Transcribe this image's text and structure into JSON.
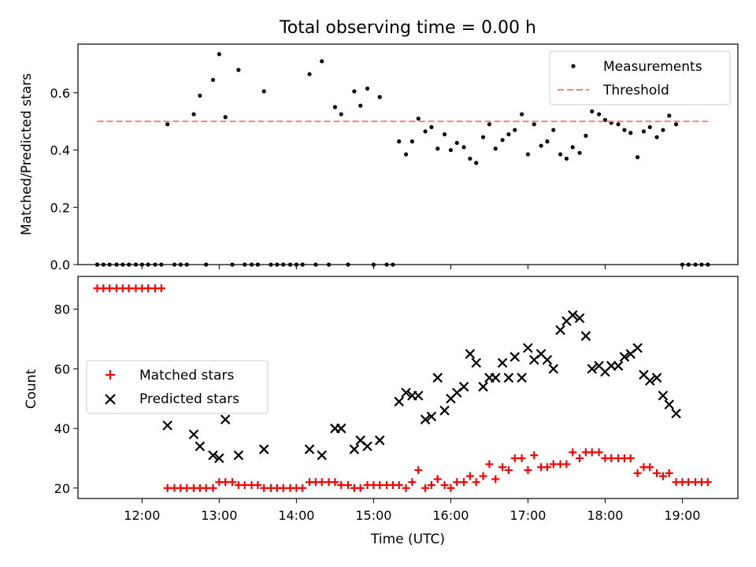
{
  "chart_data": [
    {
      "type": "scatter",
      "title": "Total observing time = 0.00 h",
      "ylabel": "Matched/Predicted stars",
      "xlabel": "",
      "xlim": [
        11.17,
        19.72
      ],
      "ylim": [
        0.0,
        0.77
      ],
      "yticks": [
        0.0,
        0.2,
        0.4,
        0.6
      ],
      "ytick_labels": [
        "0.0",
        "0.2",
        "0.4",
        "0.6"
      ],
      "legend_position": "top-right",
      "legend": [
        "Measurements",
        "Threshold"
      ],
      "series": [
        {
          "name": "Measurements",
          "marker": "dot",
          "color": "#000000",
          "points": [
            [
              11.42,
              0
            ],
            [
              11.5,
              0
            ],
            [
              11.58,
              0
            ],
            [
              11.67,
              0
            ],
            [
              11.75,
              0
            ],
            [
              11.83,
              0
            ],
            [
              11.92,
              0
            ],
            [
              12.0,
              0
            ],
            [
              12.08,
              0
            ],
            [
              12.17,
              0
            ],
            [
              12.25,
              0
            ],
            [
              12.33,
              0.49
            ],
            [
              12.42,
              0
            ],
            [
              12.5,
              0
            ],
            [
              12.58,
              0
            ],
            [
              12.67,
              0.525
            ],
            [
              12.75,
              0.59
            ],
            [
              12.83,
              0
            ],
            [
              12.92,
              0.645
            ],
            [
              13.0,
              0.735
            ],
            [
              13.08,
              0.515
            ],
            [
              13.17,
              0
            ],
            [
              13.25,
              0.68
            ],
            [
              13.33,
              0
            ],
            [
              13.42,
              0
            ],
            [
              13.5,
              0
            ],
            [
              13.58,
              0.605
            ],
            [
              13.67,
              0
            ],
            [
              13.75,
              0
            ],
            [
              13.83,
              0
            ],
            [
              13.92,
              0
            ],
            [
              14.0,
              0
            ],
            [
              14.08,
              0
            ],
            [
              14.17,
              0.665
            ],
            [
              14.25,
              0
            ],
            [
              14.33,
              0.71
            ],
            [
              14.42,
              0
            ],
            [
              14.5,
              0.55
            ],
            [
              14.58,
              0.525
            ],
            [
              14.67,
              0
            ],
            [
              14.75,
              0.605
            ],
            [
              14.83,
              0.555
            ],
            [
              14.92,
              0.615
            ],
            [
              15.0,
              0
            ],
            [
              15.08,
              0.585
            ],
            [
              15.17,
              0
            ],
            [
              15.25,
              0
            ],
            [
              15.33,
              0.43
            ],
            [
              15.42,
              0.385
            ],
            [
              15.5,
              0.43
            ],
            [
              15.58,
              0.51
            ],
            [
              15.67,
              0.465
            ],
            [
              15.75,
              0.48
            ],
            [
              15.83,
              0.405
            ],
            [
              15.92,
              0.455
            ],
            [
              16.0,
              0.4
            ],
            [
              16.08,
              0.425
            ],
            [
              16.17,
              0.41
            ],
            [
              16.25,
              0.37
            ],
            [
              16.33,
              0.355
            ],
            [
              16.42,
              0.445
            ],
            [
              16.5,
              0.49
            ],
            [
              16.58,
              0.405
            ],
            [
              16.67,
              0.435
            ],
            [
              16.75,
              0.455
            ],
            [
              16.83,
              0.47
            ],
            [
              16.92,
              0.525
            ],
            [
              17.0,
              0.385
            ],
            [
              17.08,
              0.49
            ],
            [
              17.17,
              0.415
            ],
            [
              17.25,
              0.43
            ],
            [
              17.33,
              0.47
            ],
            [
              17.42,
              0.385
            ],
            [
              17.5,
              0.37
            ],
            [
              17.58,
              0.41
            ],
            [
              17.67,
              0.39
            ],
            [
              17.75,
              0.45
            ],
            [
              17.83,
              0.535
            ],
            [
              17.92,
              0.525
            ],
            [
              18.0,
              0.505
            ],
            [
              18.08,
              0.495
            ],
            [
              18.17,
              0.49
            ],
            [
              18.25,
              0.47
            ],
            [
              18.33,
              0.46
            ],
            [
              18.42,
              0.375
            ],
            [
              18.5,
              0.465
            ],
            [
              18.58,
              0.48
            ],
            [
              18.67,
              0.445
            ],
            [
              18.75,
              0.47
            ],
            [
              18.83,
              0.52
            ],
            [
              18.92,
              0.49
            ],
            [
              19.0,
              0
            ],
            [
              19.08,
              0
            ],
            [
              19.17,
              0
            ],
            [
              19.25,
              0
            ],
            [
              19.33,
              0
            ]
          ]
        },
        {
          "name": "Threshold",
          "style": "dashed",
          "color": "#ff7f7f",
          "points": [
            [
              11.42,
              0.5
            ],
            [
              19.33,
              0.5
            ]
          ]
        }
      ]
    },
    {
      "type": "scatter",
      "title": "",
      "xlabel": "Time (UTC)",
      "ylabel": "Count",
      "xlim": [
        11.17,
        19.72
      ],
      "ylim": [
        16.5,
        91.0
      ],
      "xticks": [
        12,
        13,
        14,
        15,
        16,
        17,
        18,
        19
      ],
      "xtick_labels": [
        "12:00",
        "13:00",
        "14:00",
        "15:00",
        "16:00",
        "17:00",
        "18:00",
        "19:00"
      ],
      "yticks": [
        20,
        40,
        60,
        80
      ],
      "ytick_labels": [
        "20",
        "40",
        "60",
        "80"
      ],
      "legend_position": "center-left",
      "legend": [
        "Matched stars",
        "Predicted stars"
      ],
      "series": [
        {
          "name": "Matched stars",
          "marker": "plus",
          "color": "#ff0000",
          "points": [
            [
              11.42,
              87
            ],
            [
              11.5,
              87
            ],
            [
              11.58,
              87
            ],
            [
              11.67,
              87
            ],
            [
              11.75,
              87
            ],
            [
              11.83,
              87
            ],
            [
              11.92,
              87
            ],
            [
              12.0,
              87
            ],
            [
              12.08,
              87
            ],
            [
              12.17,
              87
            ],
            [
              12.25,
              87
            ],
            [
              12.33,
              20
            ],
            [
              12.42,
              20
            ],
            [
              12.5,
              20
            ],
            [
              12.58,
              20
            ],
            [
              12.67,
              20
            ],
            [
              12.75,
              20
            ],
            [
              12.83,
              20
            ],
            [
              12.92,
              20
            ],
            [
              13.0,
              22
            ],
            [
              13.08,
              22
            ],
            [
              13.17,
              22
            ],
            [
              13.25,
              21
            ],
            [
              13.33,
              21
            ],
            [
              13.42,
              21
            ],
            [
              13.5,
              21
            ],
            [
              13.58,
              20
            ],
            [
              13.67,
              20
            ],
            [
              13.75,
              20
            ],
            [
              13.83,
              20
            ],
            [
              13.92,
              20
            ],
            [
              14.0,
              20
            ],
            [
              14.08,
              20
            ],
            [
              14.17,
              22
            ],
            [
              14.25,
              22
            ],
            [
              14.33,
              22
            ],
            [
              14.42,
              22
            ],
            [
              14.5,
              22
            ],
            [
              14.58,
              21
            ],
            [
              14.67,
              21
            ],
            [
              14.75,
              20
            ],
            [
              14.83,
              20
            ],
            [
              14.92,
              21
            ],
            [
              15.0,
              21
            ],
            [
              15.08,
              21
            ],
            [
              15.17,
              21
            ],
            [
              15.25,
              21
            ],
            [
              15.33,
              21
            ],
            [
              15.42,
              20
            ],
            [
              15.5,
              22
            ],
            [
              15.58,
              26
            ],
            [
              15.67,
              20
            ],
            [
              15.75,
              21
            ],
            [
              15.83,
              23
            ],
            [
              15.92,
              21
            ],
            [
              16.0,
              20
            ],
            [
              16.08,
              22
            ],
            [
              16.17,
              22
            ],
            [
              16.25,
              24
            ],
            [
              16.33,
              22
            ],
            [
              16.42,
              24
            ],
            [
              16.5,
              28
            ],
            [
              16.58,
              23
            ],
            [
              16.67,
              27
            ],
            [
              16.75,
              26
            ],
            [
              16.83,
              30
            ],
            [
              16.92,
              30
            ],
            [
              17.0,
              26
            ],
            [
              17.08,
              31
            ],
            [
              17.17,
              27
            ],
            [
              17.25,
              27
            ],
            [
              17.33,
              28
            ],
            [
              17.42,
              28
            ],
            [
              17.5,
              28
            ],
            [
              17.58,
              32
            ],
            [
              17.67,
              30
            ],
            [
              17.75,
              32
            ],
            [
              17.83,
              32
            ],
            [
              17.92,
              32
            ],
            [
              18.0,
              30
            ],
            [
              18.08,
              30
            ],
            [
              18.17,
              30
            ],
            [
              18.25,
              30
            ],
            [
              18.33,
              30
            ],
            [
              18.42,
              25
            ],
            [
              18.5,
              27
            ],
            [
              18.58,
              27
            ],
            [
              18.67,
              25
            ],
            [
              18.75,
              24
            ],
            [
              18.83,
              25
            ],
            [
              18.92,
              22
            ],
            [
              19.0,
              22
            ],
            [
              19.08,
              22
            ],
            [
              19.17,
              22
            ],
            [
              19.25,
              22
            ],
            [
              19.33,
              22
            ]
          ]
        },
        {
          "name": "Predicted stars",
          "marker": "x",
          "color": "#000000",
          "points": [
            [
              12.33,
              41
            ],
            [
              12.67,
              38
            ],
            [
              12.75,
              34
            ],
            [
              12.92,
              31
            ],
            [
              13.0,
              30
            ],
            [
              13.08,
              43
            ],
            [
              13.25,
              31
            ],
            [
              13.58,
              33
            ],
            [
              14.17,
              33
            ],
            [
              14.33,
              31
            ],
            [
              14.5,
              40
            ],
            [
              14.58,
              40
            ],
            [
              14.75,
              33
            ],
            [
              14.83,
              36
            ],
            [
              14.92,
              34
            ],
            [
              15.08,
              36
            ],
            [
              15.33,
              49
            ],
            [
              15.42,
              52
            ],
            [
              15.5,
              51
            ],
            [
              15.58,
              51
            ],
            [
              15.67,
              43
            ],
            [
              15.75,
              44
            ],
            [
              15.83,
              57
            ],
            [
              15.92,
              46
            ],
            [
              16.0,
              50
            ],
            [
              16.08,
              52
            ],
            [
              16.17,
              54
            ],
            [
              16.25,
              65
            ],
            [
              16.33,
              62
            ],
            [
              16.42,
              54
            ],
            [
              16.5,
              57
            ],
            [
              16.58,
              57
            ],
            [
              16.67,
              62
            ],
            [
              16.75,
              57
            ],
            [
              16.83,
              64
            ],
            [
              16.92,
              57
            ],
            [
              17.0,
              67
            ],
            [
              17.08,
              63
            ],
            [
              17.17,
              65
            ],
            [
              17.25,
              63
            ],
            [
              17.33,
              60
            ],
            [
              17.42,
              73
            ],
            [
              17.5,
              76
            ],
            [
              17.58,
              78
            ],
            [
              17.67,
              77
            ],
            [
              17.75,
              71
            ],
            [
              17.83,
              60
            ],
            [
              17.92,
              61
            ],
            [
              18.0,
              59
            ],
            [
              18.08,
              61
            ],
            [
              18.17,
              61
            ],
            [
              18.25,
              64
            ],
            [
              18.33,
              65
            ],
            [
              18.42,
              67
            ],
            [
              18.5,
              58
            ],
            [
              18.58,
              56
            ],
            [
              18.67,
              57
            ],
            [
              18.75,
              51
            ],
            [
              18.83,
              48
            ],
            [
              18.92,
              45
            ]
          ]
        }
      ]
    }
  ]
}
